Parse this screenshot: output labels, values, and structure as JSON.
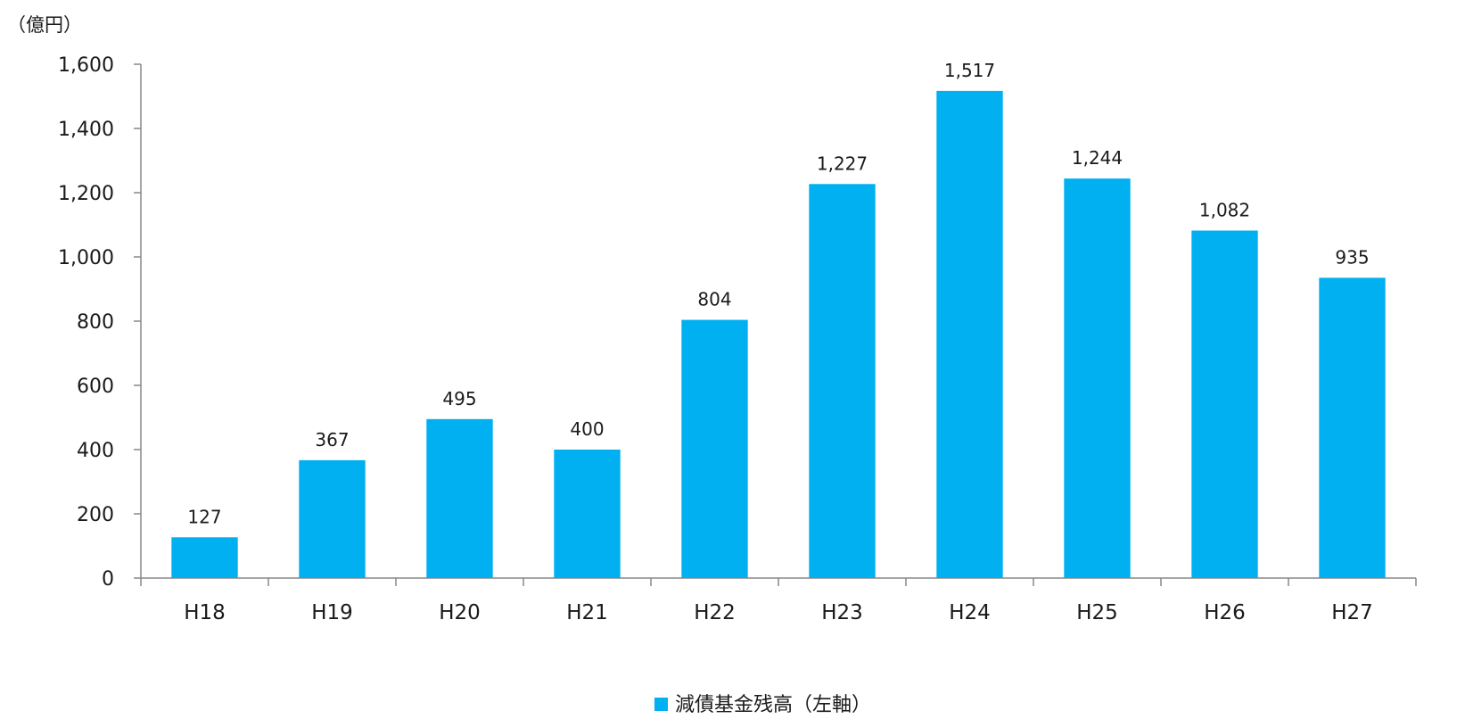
{
  "chart_data": {
    "type": "bar",
    "unit_label": "（億円）",
    "categories": [
      "H18",
      "H19",
      "H20",
      "H21",
      "H22",
      "H23",
      "H24",
      "H25",
      "H26",
      "H27"
    ],
    "series": [
      {
        "name": "減債基金残高（左軸）",
        "color": "#00b0f0",
        "values": [
          127,
          367,
          495,
          400,
          804,
          1227,
          1517,
          1244,
          1082,
          935
        ],
        "value_labels": [
          "127",
          "367",
          "495",
          "400",
          "804",
          "1,227",
          "1,517",
          "1,244",
          "1,082",
          "935"
        ]
      }
    ],
    "ylim": [
      0,
      1600
    ],
    "yticks": [
      0,
      200,
      400,
      600,
      800,
      1000,
      1200,
      1400,
      1600
    ],
    "ytick_labels": [
      "0",
      "200",
      "400",
      "600",
      "800",
      "1,000",
      "1,200",
      "1,400",
      "1,600"
    ],
    "grid": false,
    "legend_position": "bottom-center",
    "axis_color": "#888888"
  }
}
